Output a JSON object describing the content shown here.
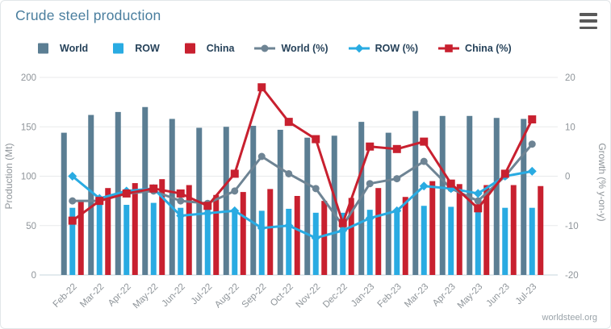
{
  "header": {
    "title": "Crude steel production"
  },
  "legend": [
    {
      "label": "World",
      "type": "bar",
      "marker": "square",
      "color": "#5b7e93"
    },
    {
      "label": "ROW",
      "type": "bar",
      "marker": "square",
      "color": "#29abe2"
    },
    {
      "label": "China",
      "type": "bar",
      "marker": "square",
      "color": "#c8202f"
    },
    {
      "label": "World (%)",
      "type": "line",
      "marker": "circle",
      "color": "#6e8494"
    },
    {
      "label": "ROW (%)",
      "type": "line",
      "marker": "diamond",
      "color": "#29abe2"
    },
    {
      "label": "China (%)",
      "type": "line",
      "marker": "square",
      "color": "#c8202f"
    }
  ],
  "chart_data": {
    "type": "bar",
    "subtype": "combo-bar-line-dual-axis",
    "categories": [
      "Feb-22",
      "Mar-22",
      "Apr-22",
      "May-22",
      "Jun-22",
      "Jul-22",
      "Aug-22",
      "Sep-22",
      "Oct-22",
      "Nov-22",
      "Dec-22",
      "Jan-23",
      "Feb-23",
      "Mar-23",
      "Apr-23",
      "May-23",
      "Jun-23",
      "Jul-23"
    ],
    "bar_series": [
      {
        "name": "World",
        "axis": "left",
        "color": "#5b7e93",
        "values": [
          144,
          162,
          165,
          170,
          158,
          149,
          150,
          151,
          147,
          139,
          141,
          155,
          144,
          166,
          161,
          161,
          159,
          158
        ]
      },
      {
        "name": "ROW",
        "axis": "left",
        "color": "#29abe2",
        "values": [
          68,
          73,
          71,
          73,
          68,
          67,
          66,
          65,
          67,
          63,
          63,
          66,
          65,
          70,
          69,
          70,
          68,
          68
        ]
      },
      {
        "name": "China",
        "axis": "left",
        "color": "#c8202f",
        "values": [
          75,
          88,
          93,
          97,
          91,
          81,
          84,
          87,
          80,
          75,
          78,
          88,
          79,
          95,
          92,
          91,
          91,
          90
        ]
      }
    ],
    "line_series": [
      {
        "name": "World (%)",
        "axis": "right",
        "marker": "circle",
        "color": "#6e8494",
        "values": [
          -5,
          -5,
          -3.5,
          -3,
          -5,
          -5.5,
          -3,
          4,
          0.5,
          -2.5,
          -10,
          -1.5,
          -0.5,
          3,
          -2.5,
          -5,
          0,
          6.5
        ]
      },
      {
        "name": "ROW (%)",
        "axis": "right",
        "marker": "diamond",
        "color": "#29abe2",
        "values": [
          0,
          -4.5,
          -3,
          -2.5,
          -8,
          -7.5,
          -7,
          -10.5,
          -10,
          -12.5,
          -11,
          -8.5,
          -7,
          -2,
          -2.5,
          -3.5,
          0,
          1
        ]
      },
      {
        "name": "China (%)",
        "axis": "right",
        "marker": "square",
        "color": "#c8202f",
        "values": [
          -9,
          -5,
          -3.5,
          -2.5,
          -3.5,
          -6,
          0.5,
          18,
          11,
          7.5,
          -9.5,
          6,
          5.5,
          7,
          -1.5,
          -6.5,
          0.5,
          11.5
        ]
      }
    ],
    "left_axis": {
      "title": "Production (Mt)",
      "min": 0,
      "max": 200.0,
      "ticks": [
        0,
        50,
        100,
        150,
        200
      ]
    },
    "right_axis": {
      "title": "Growth (% y-on-y)",
      "min": -20,
      "max": 20,
      "ticks": [
        -20,
        -10,
        0,
        10,
        20
      ]
    },
    "grid": true,
    "legend_position": "top"
  },
  "footer": {
    "source": "worldsteel.org"
  }
}
